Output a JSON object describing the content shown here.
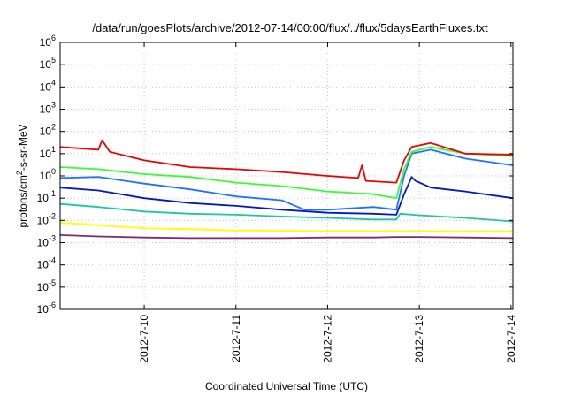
{
  "chart_data": {
    "type": "line",
    "title": "/data/run/goesPlots/archive/2012-07-14/00:00/flux/../flux/5daysEarthFluxes.txt",
    "xlabel": "Coordinated Universal Time (UTC)",
    "ylabel": "protons/cm2-s-sr-MeV",
    "y_scale": "log",
    "ylim": [
      1e-06,
      1000000.0
    ],
    "xlim": [
      "2012-07-09T02:00",
      "2012-07-14T00:30"
    ],
    "grid": true,
    "x_ticks": [
      {
        "t": "2012-07-10",
        "label": "2012-7-10"
      },
      {
        "t": "2012-07-11",
        "label": "2012-7-11"
      },
      {
        "t": "2012-07-12",
        "label": "2012-7-12"
      },
      {
        "t": "2012-07-13",
        "label": "2012-7-13"
      },
      {
        "t": "2012-07-14",
        "label": "2012-7-14"
      }
    ],
    "y_ticks": [
      {
        "v": 1e-06,
        "base": "10",
        "exp": "-6"
      },
      {
        "v": 1e-05,
        "base": "10",
        "exp": "-5"
      },
      {
        "v": 0.0001,
        "base": "10",
        "exp": "-4"
      },
      {
        "v": 0.001,
        "base": "10",
        "exp": "-3"
      },
      {
        "v": 0.01,
        "base": "10",
        "exp": "-2"
      },
      {
        "v": 0.1,
        "base": "10",
        "exp": "-1"
      },
      {
        "v": 1,
        "base": "10",
        "exp": "0"
      },
      {
        "v": 10,
        "base": "10",
        "exp": "1"
      },
      {
        "v": 100,
        "base": "10",
        "exp": "2"
      },
      {
        "v": 1000,
        "base": "10",
        "exp": "3"
      },
      {
        "v": 10000,
        "base": "10",
        "exp": "4"
      },
      {
        "v": 100000,
        "base": "10",
        "exp": "5"
      },
      {
        "v": 1000000,
        "base": "10",
        "exp": "6"
      }
    ],
    "series": [
      {
        "color": "#7f2a6e",
        "points": [
          [
            "2012-07-09T02:00",
            0.0022
          ],
          [
            "2012-07-09T12:00",
            0.0019
          ],
          [
            "2012-07-10T00:00",
            0.0017
          ],
          [
            "2012-07-10T12:00",
            0.0016
          ],
          [
            "2012-07-11T00:00",
            0.0016
          ],
          [
            "2012-07-11T12:00",
            0.0016
          ],
          [
            "2012-07-12T00:00",
            0.0017
          ],
          [
            "2012-07-12T12:00",
            0.0017
          ],
          [
            "2012-07-12T18:00",
            0.0018
          ],
          [
            "2012-07-13T00:00",
            0.0018
          ],
          [
            "2012-07-13T12:00",
            0.0017
          ],
          [
            "2012-07-14T00:30",
            0.0016
          ]
        ]
      },
      {
        "color": "#ffff00",
        "points": [
          [
            "2012-07-09T02:00",
            0.008
          ],
          [
            "2012-07-09T12:00",
            0.006
          ],
          [
            "2012-07-10T00:00",
            0.0045
          ],
          [
            "2012-07-10T12:00",
            0.004
          ],
          [
            "2012-07-11T00:00",
            0.0035
          ],
          [
            "2012-07-11T12:00",
            0.0034
          ],
          [
            "2012-07-12T00:00",
            0.0033
          ],
          [
            "2012-07-12T12:00",
            0.0033
          ],
          [
            "2012-07-12T18:00",
            0.0033
          ],
          [
            "2012-07-13T00:00",
            0.0033
          ],
          [
            "2012-07-13T12:00",
            0.0032
          ],
          [
            "2012-07-14T00:30",
            0.0032
          ]
        ]
      },
      {
        "color": "#1cc6a0",
        "points": [
          [
            "2012-07-09T02:00",
            0.055
          ],
          [
            "2012-07-09T12:00",
            0.04
          ],
          [
            "2012-07-10T00:00",
            0.025
          ],
          [
            "2012-07-10T12:00",
            0.02
          ],
          [
            "2012-07-11T00:00",
            0.018
          ],
          [
            "2012-07-11T12:00",
            0.015
          ],
          [
            "2012-07-12T00:00",
            0.013
          ],
          [
            "2012-07-12T12:00",
            0.011
          ],
          [
            "2012-07-12T18:00",
            0.011
          ],
          [
            "2012-07-12T19:00",
            0.02
          ],
          [
            "2012-07-13T00:00",
            0.017
          ],
          [
            "2012-07-13T12:00",
            0.013
          ],
          [
            "2012-07-14T00:30",
            0.009
          ]
        ]
      },
      {
        "color": "#0018c8",
        "points": [
          [
            "2012-07-09T02:00",
            0.3
          ],
          [
            "2012-07-09T12:00",
            0.22
          ],
          [
            "2012-07-10T00:00",
            0.1
          ],
          [
            "2012-07-10T12:00",
            0.06
          ],
          [
            "2012-07-11T00:00",
            0.045
          ],
          [
            "2012-07-11T12:00",
            0.03
          ],
          [
            "2012-07-12T00:00",
            0.022
          ],
          [
            "2012-07-12T12:00",
            0.02
          ],
          [
            "2012-07-12T18:00",
            0.018
          ],
          [
            "2012-07-12T20:00",
            0.15
          ],
          [
            "2012-07-12T22:00",
            0.9
          ],
          [
            "2012-07-12T23:00",
            0.6
          ],
          [
            "2012-07-13T03:00",
            0.3
          ],
          [
            "2012-07-13T12:00",
            0.2
          ],
          [
            "2012-07-14T00:30",
            0.1
          ]
        ]
      },
      {
        "color": "#1e72ff",
        "points": [
          [
            "2012-07-09T02:00",
            0.8
          ],
          [
            "2012-07-09T12:00",
            0.9
          ],
          [
            "2012-07-10T00:00",
            0.45
          ],
          [
            "2012-07-10T12:00",
            0.25
          ],
          [
            "2012-07-11T00:00",
            0.12
          ],
          [
            "2012-07-11T12:00",
            0.08
          ],
          [
            "2012-07-11T18:00",
            0.03
          ],
          [
            "2012-07-12T00:00",
            0.03
          ],
          [
            "2012-07-12T12:00",
            0.04
          ],
          [
            "2012-07-12T18:00",
            0.03
          ],
          [
            "2012-07-12T20:00",
            1.0
          ],
          [
            "2012-07-12T22:00",
            10
          ],
          [
            "2012-07-13T03:00",
            15
          ],
          [
            "2012-07-13T12:00",
            6
          ],
          [
            "2012-07-14T00:30",
            3
          ]
        ]
      },
      {
        "color": "#33ff33",
        "points": [
          [
            "2012-07-09T02:00",
            2.5
          ],
          [
            "2012-07-09T12:00",
            2.0
          ],
          [
            "2012-07-10T00:00",
            1.2
          ],
          [
            "2012-07-10T12:00",
            0.9
          ],
          [
            "2012-07-11T00:00",
            0.5
          ],
          [
            "2012-07-11T12:00",
            0.35
          ],
          [
            "2012-07-12T00:00",
            0.2
          ],
          [
            "2012-07-12T12:00",
            0.15
          ],
          [
            "2012-07-12T18:00",
            0.1
          ],
          [
            "2012-07-12T20:00",
            2
          ],
          [
            "2012-07-12T22:00",
            12
          ],
          [
            "2012-07-13T03:00",
            20
          ],
          [
            "2012-07-13T12:00",
            10
          ],
          [
            "2012-07-14T00:30",
            8
          ]
        ]
      },
      {
        "color": "#ee0000",
        "points": [
          [
            "2012-07-09T02:00",
            20
          ],
          [
            "2012-07-09T12:00",
            15
          ],
          [
            "2012-07-09T13:00",
            40
          ],
          [
            "2012-07-09T15:00",
            12
          ],
          [
            "2012-07-10T00:00",
            5
          ],
          [
            "2012-07-10T12:00",
            2.5
          ],
          [
            "2012-07-11T00:00",
            2
          ],
          [
            "2012-07-11T12:00",
            1.5
          ],
          [
            "2012-07-12T00:00",
            1.0
          ],
          [
            "2012-07-12T08:00",
            0.8
          ],
          [
            "2012-07-12T09:00",
            3
          ],
          [
            "2012-07-12T10:00",
            0.6
          ],
          [
            "2012-07-12T18:00",
            0.5
          ],
          [
            "2012-07-12T20:00",
            5
          ],
          [
            "2012-07-12T22:00",
            20
          ],
          [
            "2012-07-13T03:00",
            30
          ],
          [
            "2012-07-13T12:00",
            10
          ],
          [
            "2012-07-14T00:30",
            9
          ]
        ]
      }
    ]
  }
}
